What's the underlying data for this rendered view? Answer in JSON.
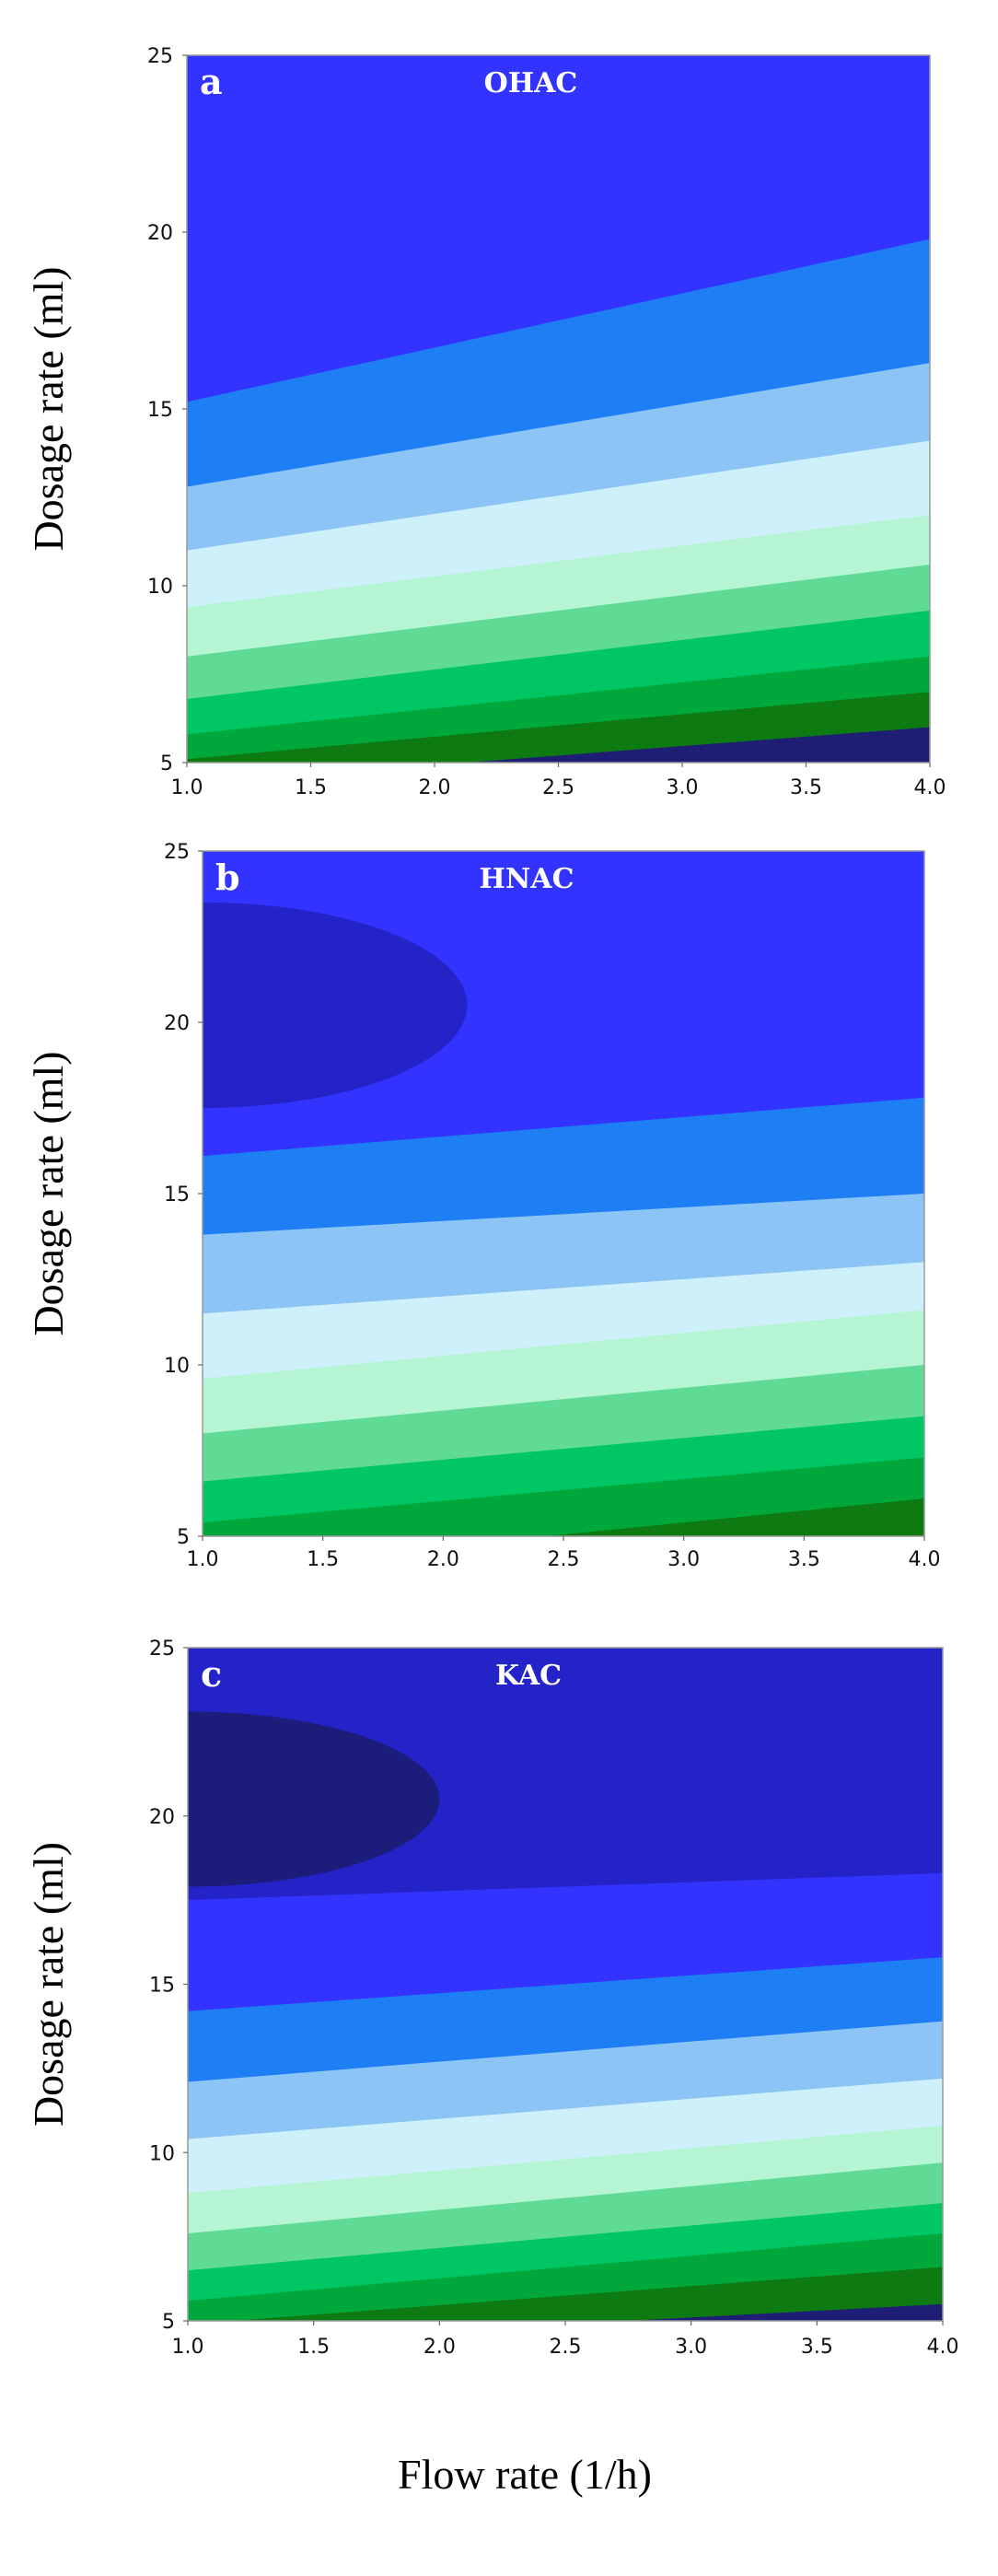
{
  "chart_data": [
    {
      "type": "heatmap",
      "panel_label": "a",
      "title": "OHAC",
      "ylabel": "Dosage rate (ml)",
      "xlabel": "",
      "xlim": [
        1.0,
        4.0
      ],
      "ylim": [
        5,
        25
      ],
      "x_ticks": [
        "1.0",
        "1.5",
        "2.0",
        "2.5",
        "3.0",
        "3.5",
        "4.0"
      ],
      "y_ticks": [
        "5",
        "10",
        "15",
        "20",
        "25"
      ],
      "contour_levels": [
        {
          "color": "#1e1e74",
          "y_at_x1": 4.4,
          "y_at_x4": 6.0
        },
        {
          "color": "#0d7a12",
          "y_at_x1": 5.1,
          "y_at_x4": 7.0
        },
        {
          "color": "#00a83c",
          "y_at_x1": 5.8,
          "y_at_x4": 8.0
        },
        {
          "color": "#00c764",
          "y_at_x1": 6.8,
          "y_at_x4": 9.3
        },
        {
          "color": "#5fdb96",
          "y_at_x1": 8.0,
          "y_at_x4": 10.6
        },
        {
          "color": "#b5f5d4",
          "y_at_x1": 9.4,
          "y_at_x4": 12.0
        },
        {
          "color": "#cdf0fb",
          "y_at_x1": 11.0,
          "y_at_x4": 14.1
        },
        {
          "color": "#8cc4f5",
          "y_at_x1": 12.8,
          "y_at_x4": 16.3
        },
        {
          "color": "#1e7ff5",
          "y_at_x1": 15.2,
          "y_at_x4": 19.8
        },
        {
          "color": "#3333ff",
          "y_at_x1": 99,
          "y_at_x4": 99
        },
        {
          "color": "#2323c8",
          "y_at_x1": 99,
          "y_at_x4": 99
        }
      ],
      "ellipse": null
    },
    {
      "type": "heatmap",
      "panel_label": "b",
      "title": "HNAC",
      "ylabel": "Dosage rate (ml)",
      "xlabel": "",
      "xlim": [
        1.0,
        4.0
      ],
      "ylim": [
        5,
        25
      ],
      "x_ticks": [
        "1.0",
        "1.5",
        "2.0",
        "2.5",
        "3.0",
        "3.5",
        "4.0"
      ],
      "y_ticks": [
        "5",
        "10",
        "15",
        "20",
        "25"
      ],
      "contour_levels": [
        {
          "color": "#0d7a12",
          "y_at_x1": 4.0,
          "y_at_x4": 6.1
        },
        {
          "color": "#00a83c",
          "y_at_x1": 5.4,
          "y_at_x4": 7.3
        },
        {
          "color": "#00c764",
          "y_at_x1": 6.6,
          "y_at_x4": 8.5
        },
        {
          "color": "#5fdb96",
          "y_at_x1": 8.0,
          "y_at_x4": 10.0
        },
        {
          "color": "#b5f5d4",
          "y_at_x1": 9.6,
          "y_at_x4": 11.6
        },
        {
          "color": "#cdf0fb",
          "y_at_x1": 11.5,
          "y_at_x4": 13.0
        },
        {
          "color": "#8cc4f5",
          "y_at_x1": 13.8,
          "y_at_x4": 15.0
        },
        {
          "color": "#1e7ff5",
          "y_at_x1": 16.1,
          "y_at_x4": 17.8
        },
        {
          "color": "#3333ff",
          "y_at_x1": 99,
          "y_at_x4": 99
        }
      ],
      "ellipse": {
        "color": "#2323c8",
        "cx": 1.0,
        "cy": 20.5,
        "rx": 1.1,
        "ry": 3.0
      }
    },
    {
      "type": "heatmap",
      "panel_label": "c",
      "title": "KAC",
      "ylabel": "Dosage rate (ml)",
      "xlabel": "Flow rate (1/h)",
      "xlim": [
        1.0,
        4.0
      ],
      "ylim": [
        5,
        25
      ],
      "x_ticks": [
        "1.0",
        "1.5",
        "2.0",
        "2.5",
        "3.0",
        "3.5",
        "4.0"
      ],
      "y_ticks": [
        "5",
        "10",
        "15",
        "20",
        "25"
      ],
      "contour_levels": [
        {
          "color": "#1e1e74",
          "y_at_x1": 4.3,
          "y_at_x4": 5.5
        },
        {
          "color": "#0d7a12",
          "y_at_x1": 4.9,
          "y_at_x4": 6.6
        },
        {
          "color": "#00a83c",
          "y_at_x1": 5.6,
          "y_at_x4": 7.6
        },
        {
          "color": "#00c764",
          "y_at_x1": 6.5,
          "y_at_x4": 8.5
        },
        {
          "color": "#5fdb96",
          "y_at_x1": 7.6,
          "y_at_x4": 9.7
        },
        {
          "color": "#b5f5d4",
          "y_at_x1": 8.8,
          "y_at_x4": 10.8
        },
        {
          "color": "#cdf0fb",
          "y_at_x1": 10.4,
          "y_at_x4": 12.2
        },
        {
          "color": "#8cc4f5",
          "y_at_x1": 12.1,
          "y_at_x4": 13.9
        },
        {
          "color": "#1e7ff5",
          "y_at_x1": 14.2,
          "y_at_x4": 15.8
        },
        {
          "color": "#3333ff",
          "y_at_x1": 17.5,
          "y_at_x4": 18.3
        },
        {
          "color": "#2323c8",
          "y_at_x1": 99,
          "y_at_x4": 99
        }
      ],
      "ellipse": {
        "color": "#1c1c7a",
        "cx": 1.0,
        "cy": 20.5,
        "rx": 1.0,
        "ry": 2.6
      }
    }
  ]
}
